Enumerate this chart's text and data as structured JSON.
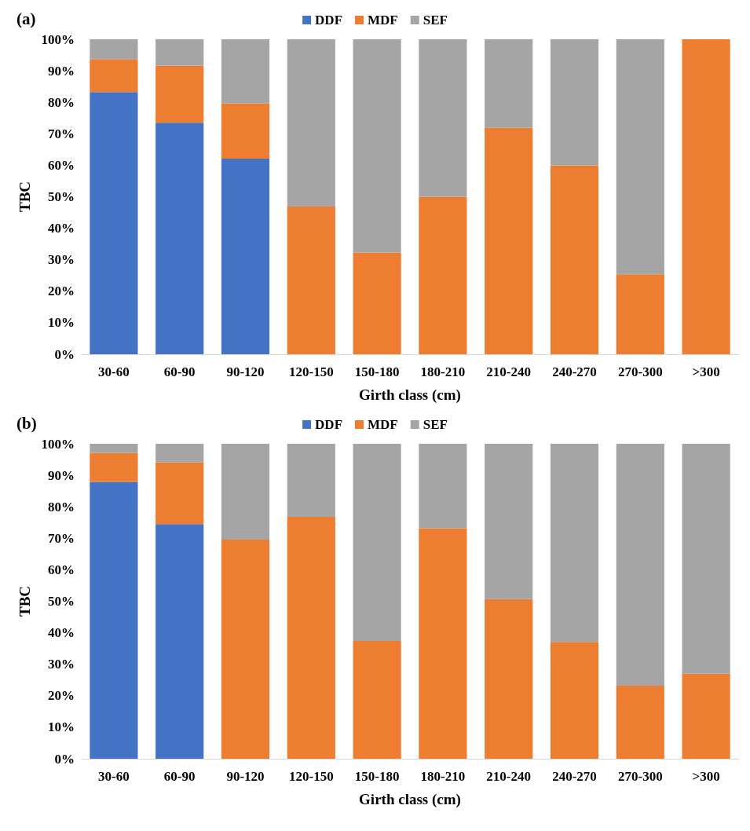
{
  "chart_data": [
    {
      "type": "bar",
      "title": "(a)",
      "xlabel": "Girth class (cm)",
      "ylabel": "TBC",
      "stacked": true,
      "legend": "top",
      "grid": false,
      "categories": [
        "30-60",
        "60-90",
        "90-120",
        "120-150",
        "150-180",
        "180-210",
        "210-240",
        "240-270",
        "270-300",
        ">300"
      ],
      "series": [
        {
          "name": "DDF",
          "color": "#4472c4",
          "values": [
            83.2,
            73.5,
            62.1,
            0,
            0,
            0,
            0,
            0,
            0,
            0
          ]
        },
        {
          "name": "MDF",
          "color": "#ed7d31",
          "values": [
            10.5,
            18.1,
            17.5,
            46.9,
            32.3,
            50,
            71.9,
            60,
            25.4,
            100
          ]
        },
        {
          "name": "SEF",
          "color": "#a5a5a5",
          "values": [
            6.3,
            8.4,
            20.4,
            53.1,
            67.7,
            50,
            28.1,
            40,
            74.6,
            0
          ]
        }
      ],
      "ylim": [
        0,
        100
      ],
      "yticks": [
        {
          "value": 0,
          "label": "0%"
        },
        {
          "value": 10,
          "label": "10%"
        },
        {
          "value": 20,
          "label": "20%"
        },
        {
          "value": 30,
          "label": "30%"
        },
        {
          "value": 40,
          "label": "40%"
        },
        {
          "value": 50,
          "label": "50%"
        },
        {
          "value": 60,
          "label": "60%"
        },
        {
          "value": 70,
          "label": "70%"
        },
        {
          "value": 80,
          "label": "80%"
        },
        {
          "value": 90,
          "label": "90%"
        },
        {
          "value": 100,
          "label": "100%"
        }
      ]
    },
    {
      "type": "bar",
      "title": "(b)",
      "xlabel": "Girth class (cm)",
      "ylabel": "TBC",
      "stacked": true,
      "legend": "top",
      "grid": false,
      "categories": [
        "30-60",
        "60-90",
        "90-120",
        "120-150",
        "150-180",
        "180-210",
        "210-240",
        "240-270",
        "270-300",
        ">300"
      ],
      "series": [
        {
          "name": "DDF",
          "color": "#4472c4",
          "values": [
            87.9,
            74.5,
            0,
            0,
            0,
            0,
            0,
            0,
            0,
            0
          ]
        },
        {
          "name": "MDF",
          "color": "#ed7d31",
          "values": [
            9.2,
            19.6,
            69.6,
            76.8,
            37.4,
            73.2,
            50.7,
            37.1,
            23.2,
            27
          ]
        },
        {
          "name": "SEF",
          "color": "#a5a5a5",
          "values": [
            2.9,
            5.9,
            30.4,
            23.2,
            62.6,
            26.8,
            49.3,
            62.9,
            76.8,
            73
          ]
        }
      ],
      "ylim": [
        0,
        100
      ],
      "yticks": [
        {
          "value": 0,
          "label": "0%"
        },
        {
          "value": 10,
          "label": "10%"
        },
        {
          "value": 20,
          "label": "20%"
        },
        {
          "value": 30,
          "label": "30%"
        },
        {
          "value": 40,
          "label": "40%"
        },
        {
          "value": 50,
          "label": "50%"
        },
        {
          "value": 60,
          "label": "60%"
        },
        {
          "value": 70,
          "label": "70%"
        },
        {
          "value": 80,
          "label": "80%"
        },
        {
          "value": 90,
          "label": "90%"
        },
        {
          "value": 100,
          "label": "100%"
        }
      ]
    }
  ]
}
